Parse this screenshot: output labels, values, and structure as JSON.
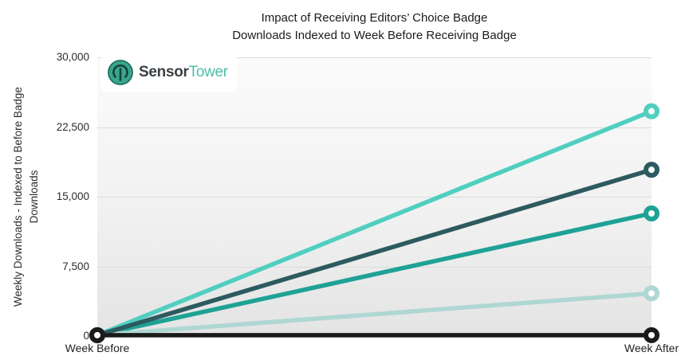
{
  "logo": {
    "sensor": "Sensor",
    "tower": "Tower",
    "icon_circle_color": "#39A68D",
    "icon_ring_color": "#1E6F5B",
    "icon_glyph_color": "#16423B"
  },
  "chart_data": {
    "type": "line",
    "title": "Impact of Receiving Editors’ Choice Badge",
    "subtitle": "Downloads Indexed to Week Before Receiving Badge",
    "xlabel": "",
    "ylabel": "Weekly Downloads - Indexed to Before Badge Downloads",
    "ylabel_lines": [
      "Weekly Downloads - Indexed to Before Badge",
      "Downloads"
    ],
    "categories": [
      "Week Before",
      "Week After"
    ],
    "y_ticks": [
      0,
      7500,
      15000,
      22500,
      30000
    ],
    "ylim": [
      0,
      30000
    ],
    "index_base": 100,
    "grid": true,
    "legend_position": "none",
    "series": [
      {
        "name": "series-1-mint",
        "color": "#50CFC0",
        "values": [
          100,
          24200
        ]
      },
      {
        "name": "series-2-teal",
        "color": "#1FA296",
        "values": [
          100,
          13200
        ]
      },
      {
        "name": "series-3-pale-teal",
        "color": "#AFD7D3",
        "values": [
          100,
          4600
        ]
      },
      {
        "name": "series-4-dark-teal",
        "color": "#2C5A5F",
        "values": [
          100,
          17900
        ]
      },
      {
        "name": "series-5-black",
        "color": "#1A1A1A",
        "values": [
          100,
          100
        ]
      }
    ],
    "colors": {
      "gridline": "#DCDCDC",
      "plot_bg_top": "#FBFBFB",
      "plot_bg_bottom": "#E4E4E4"
    }
  }
}
